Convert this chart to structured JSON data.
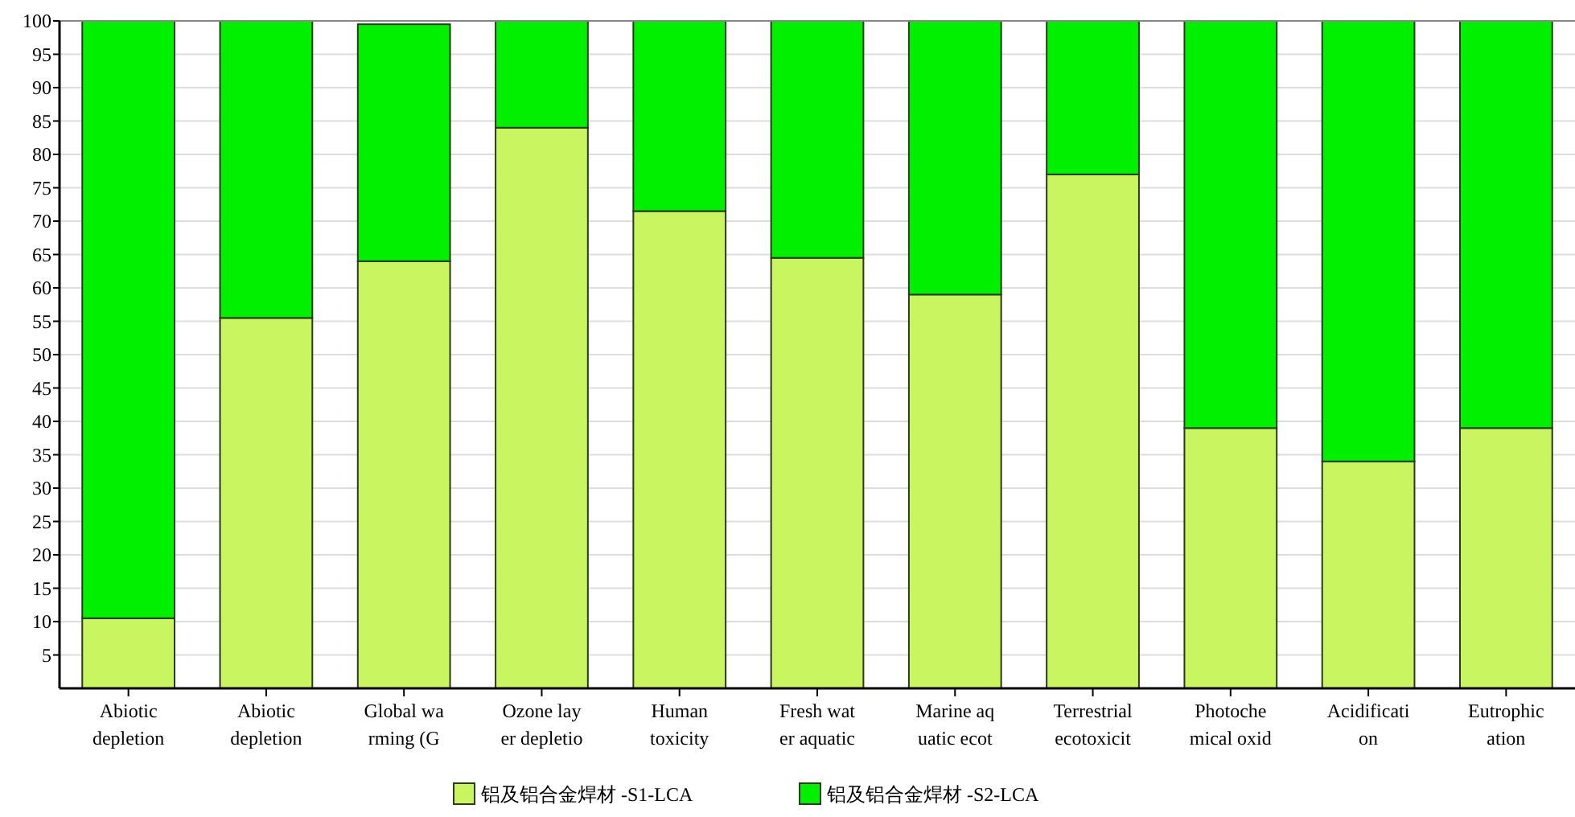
{
  "chart_data": {
    "type": "bar",
    "stacked": true,
    "categories": [
      "Abiotic\ndepletion",
      "Abiotic\ndepletion",
      "Global wa\nrming (G",
      "Ozone lay\ner depletio",
      "Human\ntoxicity",
      "Fresh wat\ner aquatic",
      "Marine aq\nuatic ecot",
      "Terrestrial\necotoxicit",
      "Photoche\nmical oxid",
      "Acidificati\non",
      "Eutrophic\nation"
    ],
    "series": [
      {
        "name": "铝及铝合金焊材 -S1-LCA",
        "color": "#c8f560",
        "values": [
          10.5,
          55.5,
          64,
          84,
          71.5,
          64.5,
          59,
          77,
          39,
          34,
          39
        ]
      },
      {
        "name": "铝及铝合金焊材 -S2-LCA",
        "color": "#00f000",
        "values": [
          89.5,
          44.5,
          35.5,
          16,
          28.5,
          35.5,
          41,
          23,
          61,
          66,
          61
        ]
      }
    ],
    "ylim": [
      0,
      100
    ],
    "yticks": [
      5,
      10,
      15,
      20,
      25,
      30,
      35,
      40,
      45,
      50,
      55,
      60,
      65,
      70,
      75,
      80,
      85,
      90,
      95,
      100
    ],
    "grid": "y",
    "legend": "bottom"
  }
}
